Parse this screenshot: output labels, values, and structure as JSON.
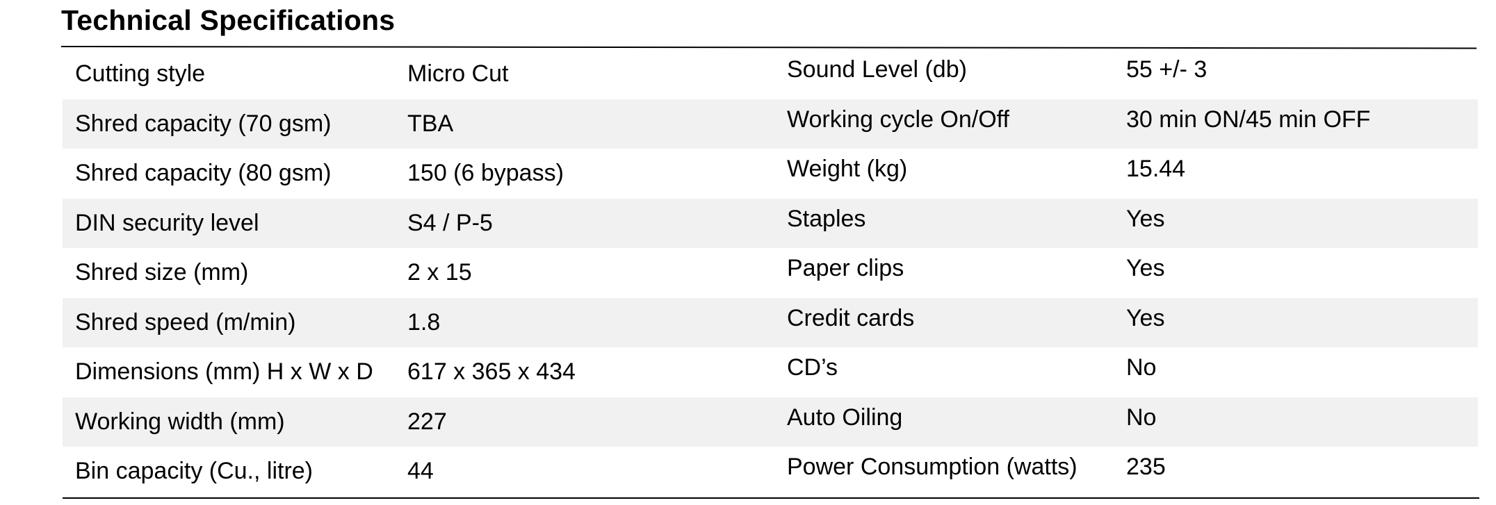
{
  "title": "Technical Specifications",
  "rows": [
    {
      "label1": "Cutting style",
      "value1": "Micro Cut",
      "label2": "Sound Level (db)",
      "value2": "55 +/- 3"
    },
    {
      "label1": "Shred capacity (70 gsm)",
      "value1": "TBA",
      "label2": "Working cycle On/Off",
      "value2": "30 min ON/45 min OFF"
    },
    {
      "label1": "Shred capacity (80 gsm)",
      "value1": "150 (6 bypass)",
      "label2": "Weight (kg)",
      "value2": "15.44"
    },
    {
      "label1": "DIN security level",
      "value1": "S4 / P-5",
      "label2": "Staples",
      "value2": "Yes"
    },
    {
      "label1": "Shred size (mm)",
      "value1": "2 x 15",
      "label2": "Paper clips",
      "value2": "Yes"
    },
    {
      "label1": "Shred speed (m/min)",
      "value1": "1.8",
      "label2": "Credit cards",
      "value2": "Yes"
    },
    {
      "label1": "Dimensions (mm) H x W x D",
      "value1": "617 x 365 x 434",
      "label2": "CD’s",
      "value2": "No"
    },
    {
      "label1": "Working width (mm)",
      "value1": "227",
      "label2": "Auto Oiling",
      "value2": "No"
    },
    {
      "label1": "Bin capacity (Cu., litre)",
      "value1": "44",
      "label2": "Power Consumption (watts)",
      "value2": "235"
    }
  ]
}
